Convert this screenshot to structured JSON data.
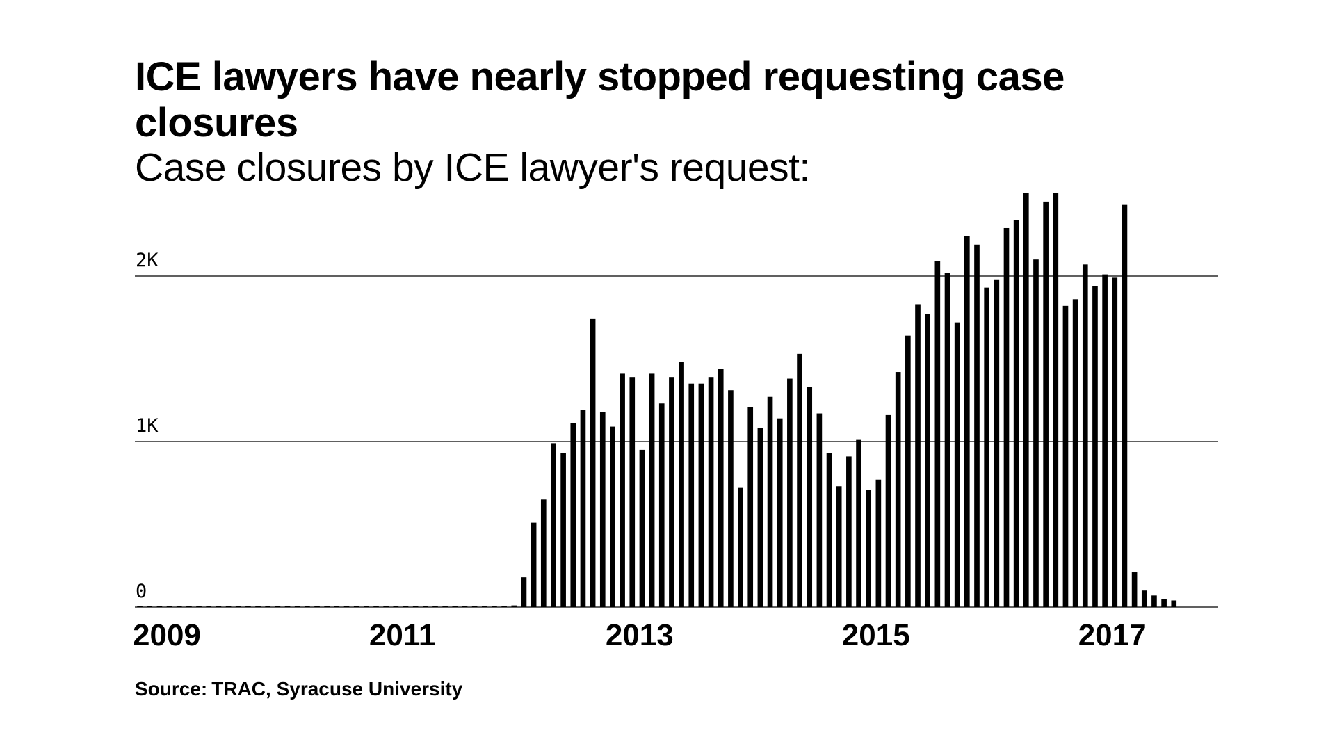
{
  "title": "ICE lawyers have nearly stopped requesting case closures",
  "subtitle": "Case closures by ICE lawyer's request:",
  "source": {
    "label": "Source:",
    "value": "TRAC, Syracuse University"
  },
  "colors": {
    "bar": "#000000",
    "grid": "#000000",
    "text": "#000000",
    "background": "#ffffff"
  },
  "chart_data": {
    "type": "bar",
    "title": "ICE lawyers have nearly stopped requesting case closures",
    "subtitle": "Case closures by ICE lawyer's request:",
    "x_start": "2009-01",
    "x_end": "2018-03",
    "xticks": [
      "2009",
      "2011",
      "2013",
      "2015",
      "2017"
    ],
    "yticks": [
      {
        "value": 0,
        "label": "0"
      },
      {
        "value": 1000,
        "label": "1K"
      },
      {
        "value": 2000,
        "label": "2K"
      }
    ],
    "ylim": [
      0,
      2520
    ],
    "grid": true,
    "x": [
      "2009-01",
      "2009-02",
      "2009-03",
      "2009-04",
      "2009-05",
      "2009-06",
      "2009-07",
      "2009-08",
      "2009-09",
      "2009-10",
      "2009-11",
      "2009-12",
      "2010-01",
      "2010-02",
      "2010-03",
      "2010-04",
      "2010-05",
      "2010-06",
      "2010-07",
      "2010-08",
      "2010-09",
      "2010-10",
      "2010-11",
      "2010-12",
      "2011-01",
      "2011-02",
      "2011-03",
      "2011-04",
      "2011-05",
      "2011-06",
      "2011-07",
      "2011-08",
      "2011-09",
      "2011-10",
      "2011-11",
      "2011-12",
      "2012-01",
      "2012-02",
      "2012-03",
      "2012-04",
      "2012-05",
      "2012-06",
      "2012-07",
      "2012-08",
      "2012-09",
      "2012-10",
      "2012-11",
      "2012-12",
      "2013-01",
      "2013-02",
      "2013-03",
      "2013-04",
      "2013-05",
      "2013-06",
      "2013-07",
      "2013-08",
      "2013-09",
      "2013-10",
      "2013-11",
      "2013-12",
      "2014-01",
      "2014-02",
      "2014-03",
      "2014-04",
      "2014-05",
      "2014-06",
      "2014-07",
      "2014-08",
      "2014-09",
      "2014-10",
      "2014-11",
      "2014-12",
      "2015-01",
      "2015-02",
      "2015-03",
      "2015-04",
      "2015-05",
      "2015-06",
      "2015-07",
      "2015-08",
      "2015-09",
      "2015-10",
      "2015-11",
      "2015-12",
      "2016-01",
      "2016-02",
      "2016-03",
      "2016-04",
      "2016-05",
      "2016-06",
      "2016-07",
      "2016-08",
      "2016-09",
      "2016-10",
      "2016-11",
      "2016-12",
      "2017-01",
      "2017-02",
      "2017-03",
      "2017-04",
      "2017-05",
      "2017-06",
      "2017-07",
      "2017-08",
      "2017-09",
      "2017-10"
    ],
    "values": [
      2,
      2,
      2,
      2,
      2,
      2,
      2,
      2,
      2,
      2,
      2,
      2,
      2,
      2,
      2,
      2,
      2,
      2,
      2,
      2,
      2,
      2,
      2,
      2,
      2,
      2,
      2,
      2,
      2,
      2,
      2,
      2,
      2,
      2,
      2,
      2,
      5,
      8,
      10,
      180,
      510,
      650,
      990,
      930,
      1110,
      1190,
      1740,
      1180,
      1090,
      1410,
      1390,
      950,
      1410,
      1230,
      1390,
      1480,
      1350,
      1350,
      1390,
      1440,
      1310,
      720,
      1210,
      1080,
      1270,
      1140,
      1380,
      1530,
      1330,
      1170,
      930,
      730,
      910,
      1010,
      710,
      770,
      1160,
      1420,
      1640,
      1830,
      1770,
      2090,
      2020,
      1720,
      2240,
      2190,
      1930,
      1980,
      2290,
      2340,
      2500,
      2100,
      2450,
      2500,
      1820,
      1860,
      2070,
      1940,
      2010,
      1990,
      2430,
      210,
      100,
      70,
      50,
      40
    ]
  }
}
